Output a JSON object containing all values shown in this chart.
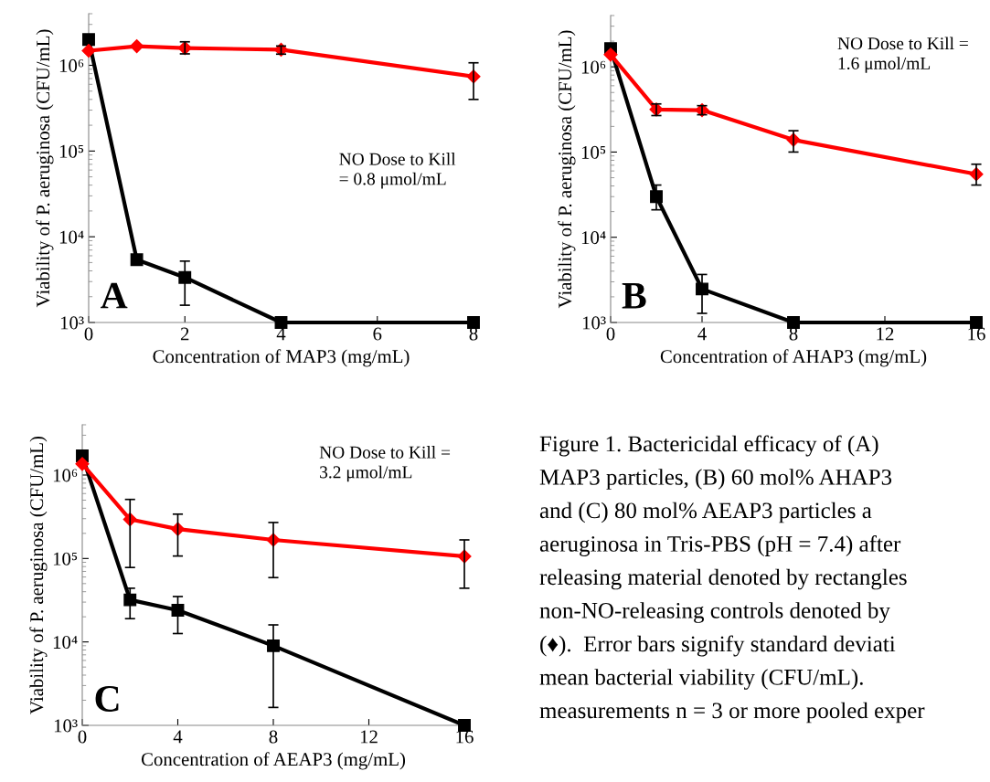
{
  "chart_data": [
    {
      "type": "line",
      "xlabel": "Concentration of MAP3 (mg/mL)",
      "ylabel": "Viability of P. aeruginosa (CFU/mL)",
      "log": "y",
      "xlim": [
        0,
        8
      ],
      "xticks": [
        0,
        2,
        4,
        6,
        8
      ],
      "ylim": [
        1000,
        4000000
      ],
      "yticks": [
        {
          "value": 1000,
          "label": "10³"
        },
        {
          "value": 10000,
          "label": "10⁴"
        },
        {
          "value": 100000,
          "label": "10⁵"
        },
        {
          "value": 1000000,
          "label": "10⁶"
        }
      ],
      "grid": false,
      "legend": false,
      "annotations": [
        "A",
        "NO Dose to Kill\n= 0.8 μmol/mL"
      ],
      "series": [
        {
          "color": "#000000",
          "marker": "square",
          "x": [
            0,
            1,
            2,
            4,
            8
          ],
          "values": [
            2000000,
            5400,
            3350,
            1000,
            1000
          ],
          "errors": [
            null,
            [
              4800,
              6000
            ],
            [
              1590,
              5200
            ],
            null,
            null
          ]
        },
        {
          "color": "#ff0000",
          "marker": "diamond",
          "x": [
            0,
            1,
            2,
            4,
            8
          ],
          "values": [
            1480000,
            1670000,
            1590000,
            1520000,
            740000
          ],
          "errors": [
            null,
            null,
            [
              1360000,
              1880000
            ],
            [
              1350000,
              1680000
            ],
            [
              400000,
              1070000
            ]
          ]
        }
      ]
    },
    {
      "type": "line",
      "xlabel": "Concentration of AHAP3 (mg/mL)",
      "ylabel": "Viability of P. aeruginosa (CFU/mL)",
      "log": "y",
      "xlim": [
        0,
        16
      ],
      "xticks": [
        0,
        4,
        8,
        12,
        16
      ],
      "ylim": [
        1000,
        4000000
      ],
      "yticks": [
        {
          "value": 1000,
          "label": "10³"
        },
        {
          "value": 10000,
          "label": "10⁴"
        },
        {
          "value": 100000,
          "label": "10⁵"
        },
        {
          "value": 1000000,
          "label": "10⁶"
        }
      ],
      "grid": false,
      "legend": false,
      "annotations": [
        "B",
        "NO Dose to Kill =\n1.6 μmol/mL"
      ],
      "series": [
        {
          "color": "#000000",
          "marker": "square",
          "x": [
            0,
            2,
            4,
            8,
            16
          ],
          "values": [
            1640000,
            30000,
            2470,
            1000,
            1000
          ],
          "errors": [
            null,
            [
              21000,
              41000
            ],
            [
              1280,
              3660
            ],
            null,
            null
          ]
        },
        {
          "color": "#ff0000",
          "marker": "diamond",
          "x": [
            0,
            2,
            4,
            8,
            16
          ],
          "values": [
            1390000,
            316000,
            310000,
            139000,
            55000
          ],
          "errors": [
            null,
            [
              268000,
              367000
            ],
            [
              274000,
              350000
            ],
            [
              100000,
              178000
            ],
            [
              41000,
              72000
            ]
          ]
        }
      ]
    },
    {
      "type": "line",
      "xlabel": "Concentration of AEAP3 (mg/mL)",
      "ylabel": "Viability of P. aeruginosa (CFU/mL)",
      "log": "y",
      "xlim": [
        0,
        16
      ],
      "xticks": [
        0,
        4,
        8,
        12,
        16
      ],
      "ylim": [
        1000,
        4000000
      ],
      "yticks": [
        {
          "value": 1000,
          "label": "10³"
        },
        {
          "value": 10000,
          "label": "10⁴"
        },
        {
          "value": 100000,
          "label": "10⁵"
        },
        {
          "value": 1000000,
          "label": "10⁶"
        }
      ],
      "grid": false,
      "legend": false,
      "annotations": [
        "C",
        "NO Dose to Kill =\n3.2 μmol/mL"
      ],
      "series": [
        {
          "color": "#000000",
          "marker": "square",
          "x": [
            0,
            2,
            4,
            8,
            16
          ],
          "values": [
            1700000,
            31900,
            24000,
            9000,
            1000
          ],
          "errors": [
            null,
            [
              19000,
              44000
            ],
            [
              12600,
              35000
            ],
            [
              1640,
              16000
            ],
            null
          ]
        },
        {
          "color": "#ff0000",
          "marker": "diamond",
          "x": [
            0,
            2,
            4,
            8,
            16
          ],
          "values": [
            1360000,
            294000,
            225000,
            167000,
            106000
          ],
          "errors": [
            null,
            [
              78000,
              510000
            ],
            [
              107000,
              340000
            ],
            [
              59000,
              270000
            ],
            [
              44000,
              167000
            ]
          ]
        }
      ]
    },
    {
      "type": "other",
      "annotations": [
        "Figure 1. Bactericidal efficacy of (A)",
        "MAP3 particles, (B) 60 mol% AHAP3",
        "and (C) 80 mol% AEAP3 particles a",
        "aeruginosa in Tris-PBS (pH = 7.4) after",
        "releasing material denoted by rectangles",
        "non-NO-releasing controls denoted by",
        "(♦).  Error bars signify standard deviati",
        "mean bacterial viability (CFU/mL).",
        "measurements n = 3 or more pooled exper"
      ]
    }
  ]
}
